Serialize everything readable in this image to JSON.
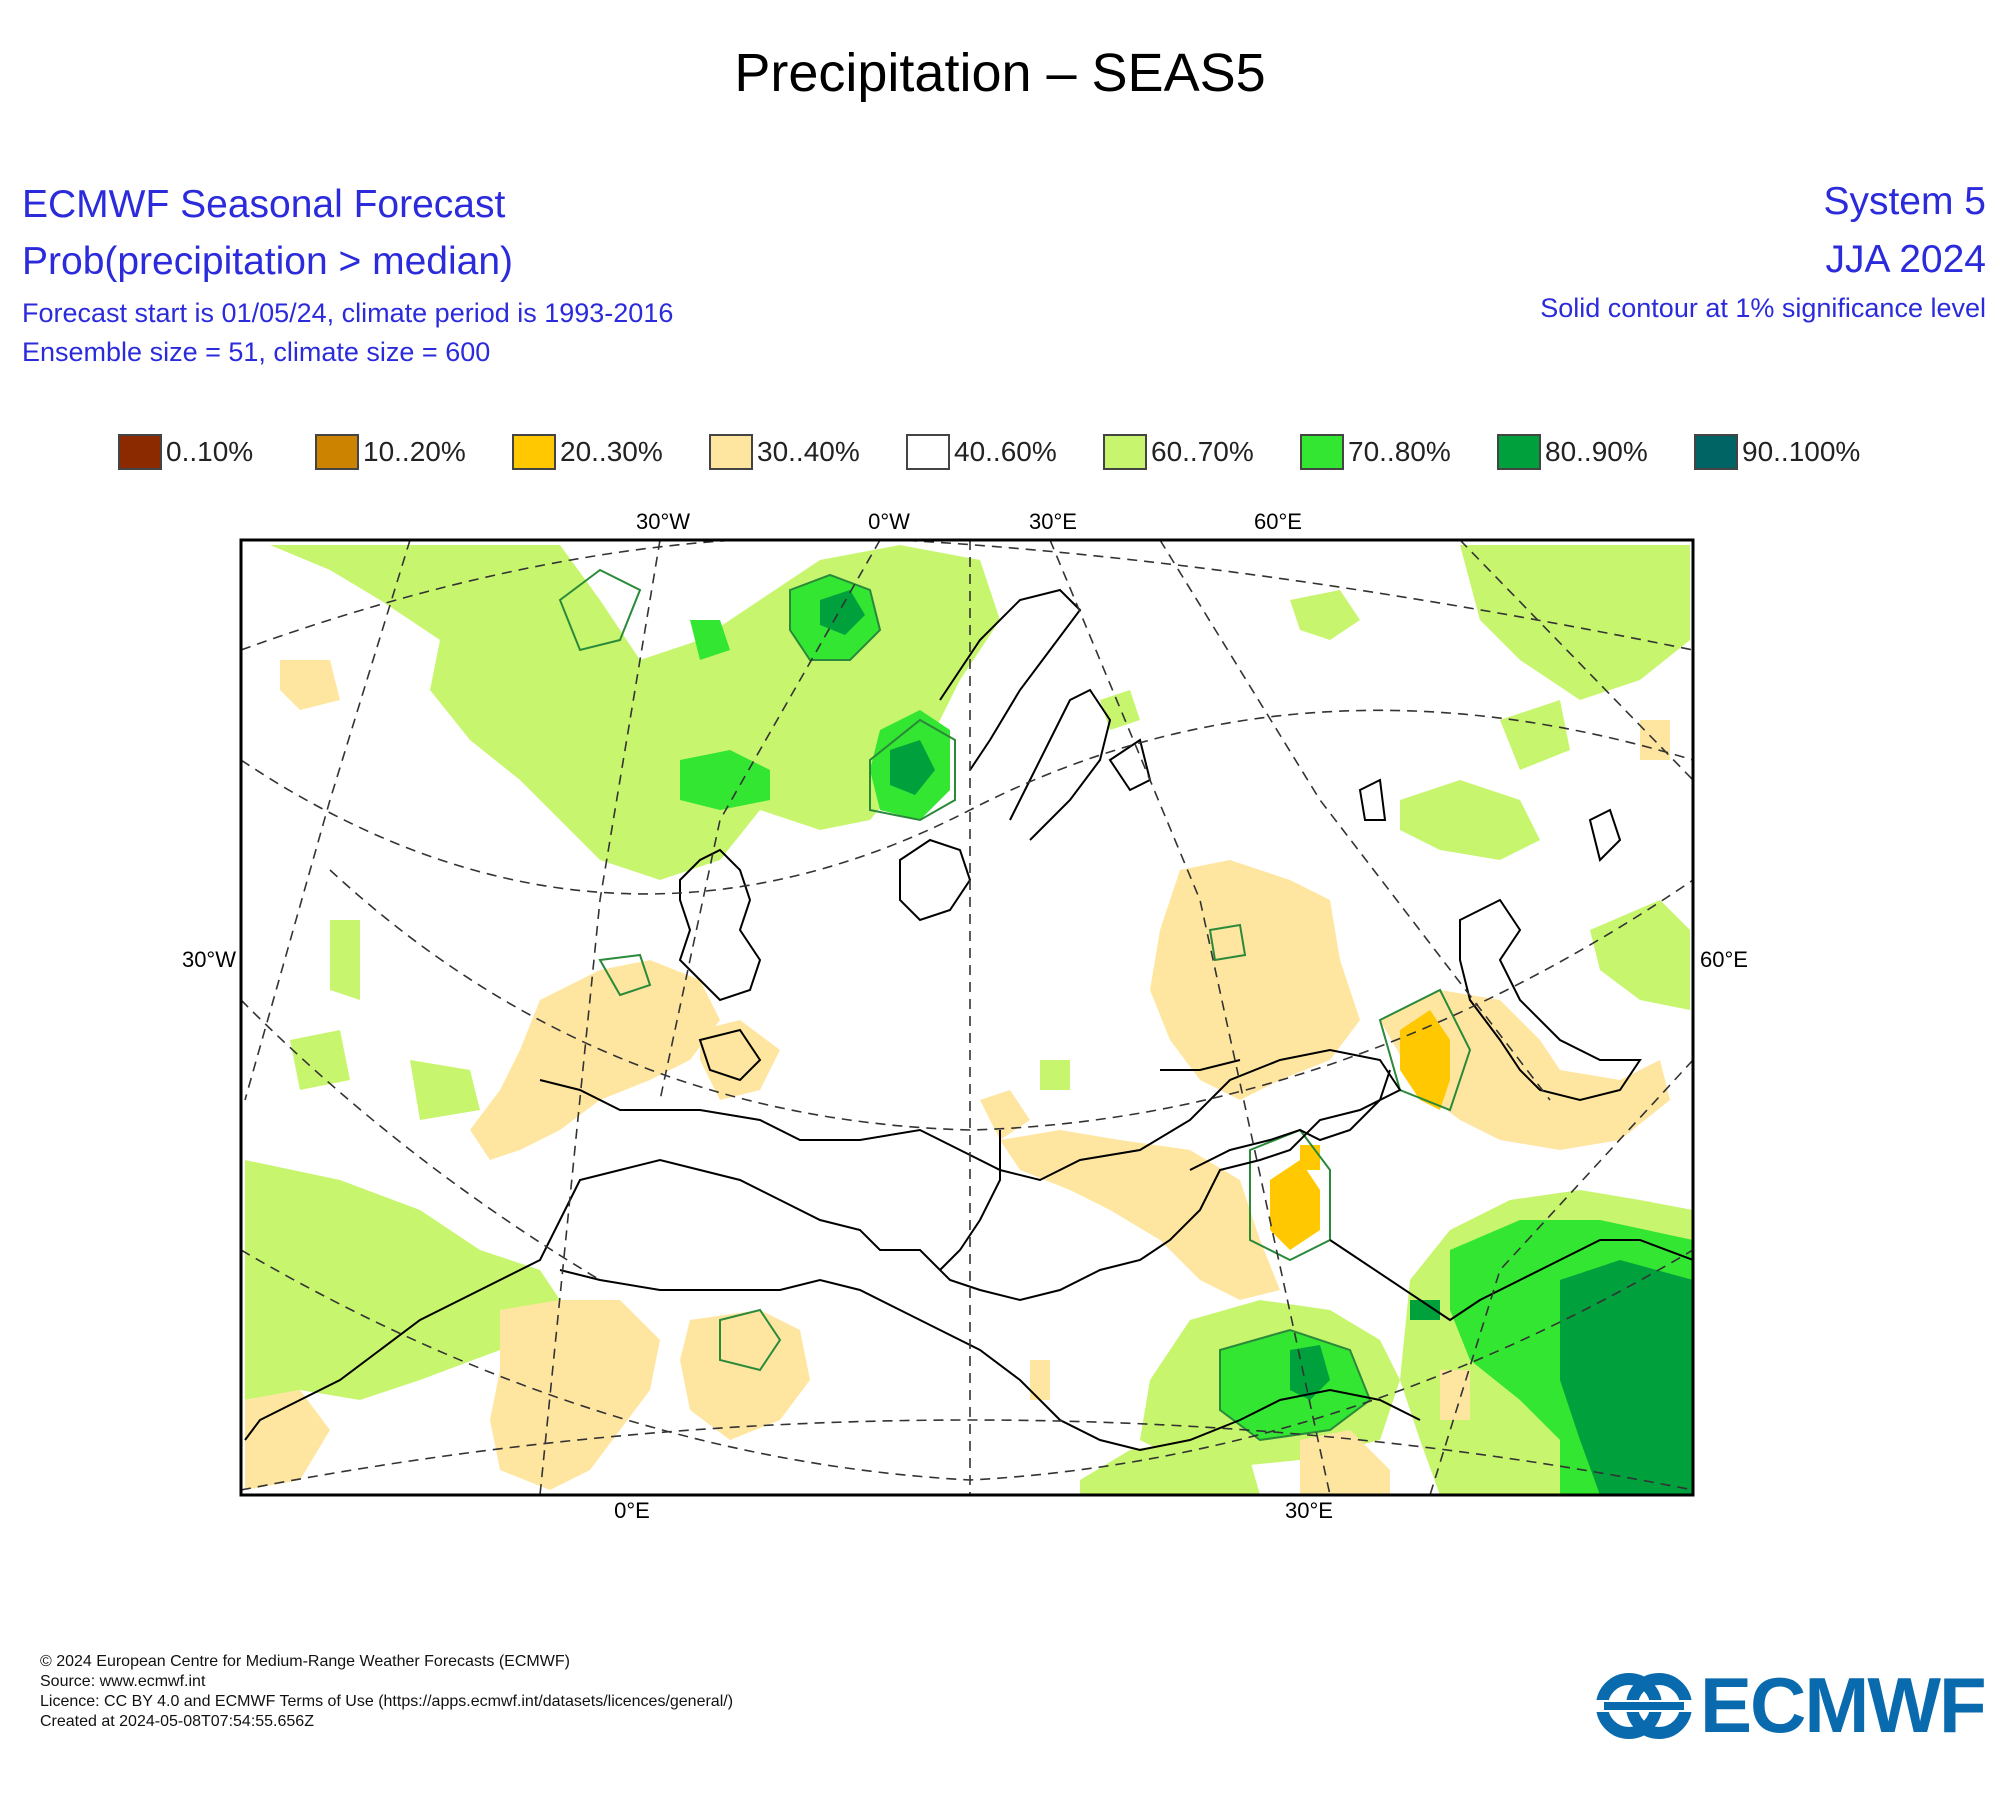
{
  "title": "Precipitation – SEAS5",
  "header_left": {
    "line1": "ECMWF Seasonal Forecast",
    "line2": "Prob(precipitation > median)",
    "line3": "Forecast start is 01/05/24, climate period is 1993-2016",
    "line4": "Ensemble size = 51, climate size = 600"
  },
  "header_right": {
    "line1": "System 5",
    "line2": "JJA 2024",
    "line3": "Solid contour at 1% significance level"
  },
  "legend": [
    {
      "label": "0..10%",
      "color": "#8b2a00"
    },
    {
      "label": "10..20%",
      "color": "#cc8400"
    },
    {
      "label": "20..30%",
      "color": "#ffc800"
    },
    {
      "label": "30..40%",
      "color": "#ffe6a0"
    },
    {
      "label": "40..60%",
      "color": "#ffffff"
    },
    {
      "label": "60..70%",
      "color": "#c8f56e"
    },
    {
      "label": "70..80%",
      "color": "#32e632"
    },
    {
      "label": "80..90%",
      "color": "#00a03c"
    },
    {
      "label": "90..100%",
      "color": "#006464"
    }
  ],
  "map": {
    "top_labels": [
      "30°W",
      "0°W",
      "30°E",
      "60°E"
    ],
    "left_label": "30°W",
    "right_label": "60°E",
    "bottom_labels": [
      "0°E",
      "30°E"
    ]
  },
  "footer": {
    "line1": "© 2024 European Centre for Medium-Range Weather Forecasts (ECMWF)",
    "line2": "Source: www.ecmwf.int",
    "line3": "Licence: CC BY 4.0 and ECMWF Terms of Use (https://apps.ecmwf.int/datasets/licences/general/)",
    "line4": "Created at 2024-05-08T07:54:55.656Z"
  },
  "logo_text": "ECMWF"
}
